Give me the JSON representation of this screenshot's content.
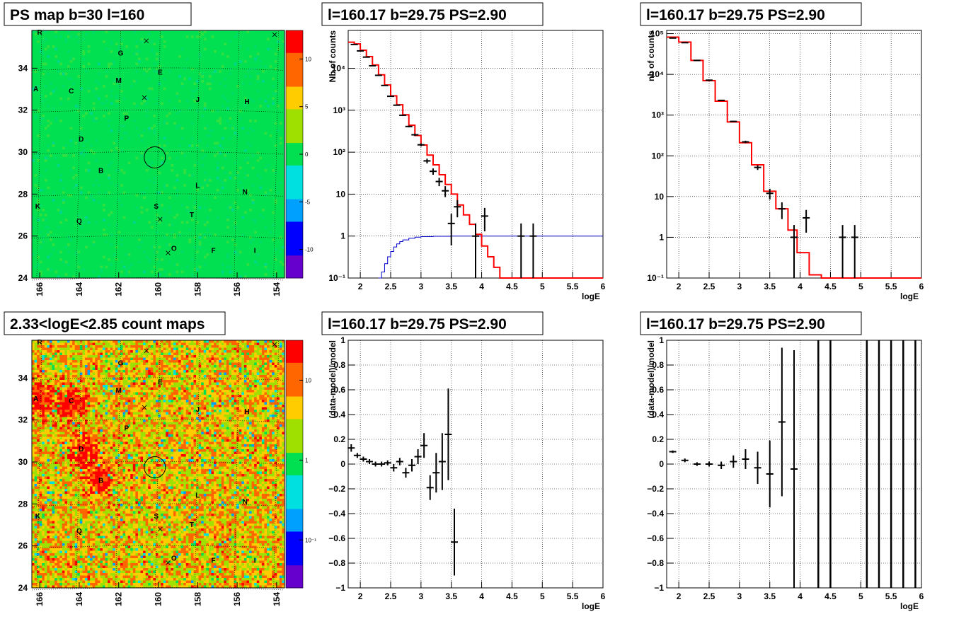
{
  "chart_data": [
    {
      "type": "heatmap",
      "title": "PS map b=30 l=160",
      "x_ticks": [
        "166",
        "164",
        "162",
        "160",
        "158",
        "156",
        "154"
      ],
      "y_ticks": [
        "24",
        "26",
        "28",
        "30",
        "32",
        "34"
      ],
      "xlim": [
        166.4,
        153.6
      ],
      "ylim": [
        24,
        35.8
      ],
      "colorbar_ticks": [
        "10",
        "5",
        "0",
        "-5",
        "-10"
      ],
      "colorbar_range": [
        -13,
        13
      ],
      "background": "#00e050",
      "colorscale": [
        "#6600cc",
        "#0000ff",
        "#00a0ff",
        "#00e0e0",
        "#00e050",
        "#a0e000",
        "#ffcc00",
        "#ff6600",
        "#ff0000"
      ],
      "sources": [
        {
          "label": "R",
          "l": 166.0,
          "b": 35.6
        },
        {
          "label": "G",
          "l": 161.9,
          "b": 34.6
        },
        {
          "label": "E",
          "l": 159.9,
          "b": 33.7
        },
        {
          "label": "M",
          "l": 162.0,
          "b": 33.3
        },
        {
          "label": "A",
          "l": 166.2,
          "b": 32.9
        },
        {
          "label": "C",
          "l": 164.4,
          "b": 32.8
        },
        {
          "label": "J",
          "l": 158.0,
          "b": 32.4
        },
        {
          "label": "H",
          "l": 155.5,
          "b": 32.3
        },
        {
          "label": "P",
          "l": 161.6,
          "b": 31.5
        },
        {
          "label": "D",
          "l": 163.9,
          "b": 30.5
        },
        {
          "label": "B",
          "l": 162.9,
          "b": 29.0
        },
        {
          "label": "L",
          "l": 158.0,
          "b": 28.3
        },
        {
          "label": "N",
          "l": 155.6,
          "b": 28.0
        },
        {
          "label": "K",
          "l": 166.1,
          "b": 27.3
        },
        {
          "label": "S",
          "l": 160.1,
          "b": 27.3
        },
        {
          "label": "T",
          "l": 158.3,
          "b": 26.9
        },
        {
          "label": "Q",
          "l": 164.0,
          "b": 26.6
        },
        {
          "label": "O",
          "l": 159.2,
          "b": 25.3
        },
        {
          "label": "F",
          "l": 157.2,
          "b": 25.2
        },
        {
          "label": "I",
          "l": 155.1,
          "b": 25.2
        }
      ],
      "cross_markers": [
        {
          "l": 160.6,
          "b": 35.3
        },
        {
          "l": 160.7,
          "b": 32.6
        },
        {
          "l": 159.9,
          "b": 26.8
        },
        {
          "l": 159.5,
          "b": 25.2
        },
        {
          "l": 154.1,
          "b": 35.6
        }
      ],
      "circle": {
        "l": 160.17,
        "b": 29.75
      }
    },
    {
      "type": "line",
      "title": "l=160.17 b=29.75 PS=2.90",
      "xlabel": "logE",
      "ylabel": "Nb of counts",
      "xlim": [
        1.8,
        6
      ],
      "ylim": [
        0.1,
        80000
      ],
      "log_y": true,
      "x_ticks": [
        "2",
        "2.5",
        "3",
        "3.5",
        "4",
        "4.5",
        "5",
        "5.5",
        "6"
      ],
      "y_ticks": [
        "10⁻¹",
        "1",
        "10",
        "10²",
        "10³",
        "10⁴"
      ],
      "red_model": [
        [
          1.8,
          42000
        ],
        [
          1.9,
          38000
        ],
        [
          2.0,
          27000
        ],
        [
          2.1,
          19000
        ],
        [
          2.2,
          12000
        ],
        [
          2.3,
          7000
        ],
        [
          2.4,
          4000
        ],
        [
          2.5,
          2200
        ],
        [
          2.6,
          1350
        ],
        [
          2.7,
          780
        ],
        [
          2.8,
          440
        ],
        [
          2.9,
          250
        ],
        [
          3.0,
          148
        ],
        [
          3.1,
          85
        ],
        [
          3.2,
          50
        ],
        [
          3.3,
          29
        ],
        [
          3.4,
          17
        ],
        [
          3.5,
          10
        ],
        [
          3.6,
          5.5
        ],
        [
          3.7,
          3.2
        ],
        [
          3.8,
          1.9
        ],
        [
          3.9,
          1.1
        ],
        [
          4.0,
          0.58
        ],
        [
          4.1,
          0.32
        ],
        [
          4.2,
          0.18
        ],
        [
          4.3,
          0.1
        ],
        [
          4.4,
          0.1
        ],
        [
          6.0,
          0.1
        ]
      ],
      "blue_model": [
        [
          2.3,
          0.1
        ],
        [
          2.35,
          0.14
        ],
        [
          2.4,
          0.22
        ],
        [
          2.45,
          0.32
        ],
        [
          2.5,
          0.43
        ],
        [
          2.55,
          0.55
        ],
        [
          2.6,
          0.65
        ],
        [
          2.65,
          0.74
        ],
        [
          2.7,
          0.81
        ],
        [
          2.8,
          0.89
        ],
        [
          2.9,
          0.94
        ],
        [
          3.0,
          0.97
        ],
        [
          3.2,
          0.99
        ],
        [
          3.5,
          1.0
        ],
        [
          6.0,
          1.0
        ]
      ],
      "points": [
        {
          "x": 1.9,
          "y": 37000,
          "err": 200
        },
        {
          "x": 2.0,
          "y": 26000,
          "err": 160
        },
        {
          "x": 2.1,
          "y": 18500,
          "err": 140
        },
        {
          "x": 2.2,
          "y": 11500,
          "err": 110
        },
        {
          "x": 2.3,
          "y": 6800,
          "err": 85
        },
        {
          "x": 2.4,
          "y": 3900,
          "err": 65
        },
        {
          "x": 2.5,
          "y": 2150,
          "err": 47
        },
        {
          "x": 2.6,
          "y": 1320,
          "err": 37
        },
        {
          "x": 2.7,
          "y": 760,
          "err": 28
        },
        {
          "x": 2.8,
          "y": 410,
          "err": 20
        },
        {
          "x": 2.9,
          "y": 260,
          "err": 16
        },
        {
          "x": 3.0,
          "y": 150,
          "err": 12
        },
        {
          "x": 3.1,
          "y": 62,
          "err": 8
        },
        {
          "x": 3.2,
          "y": 35,
          "err": 6
        },
        {
          "x": 3.3,
          "y": 20,
          "err": 4.5
        },
        {
          "x": 3.4,
          "y": 12,
          "err": 3.5
        },
        {
          "x": 3.5,
          "y": 2,
          "err": 1.4
        },
        {
          "x": 3.6,
          "y": 5,
          "err": 2.2
        },
        {
          "x": 3.9,
          "y": 1,
          "err": 1
        },
        {
          "x": 4.05,
          "y": 3,
          "err": 1.7
        },
        {
          "x": 4.65,
          "y": 1,
          "err": 1
        },
        {
          "x": 4.85,
          "y": 1,
          "err": 1
        }
      ]
    },
    {
      "type": "line",
      "title": "l=160.17 b=29.75 PS=2.90",
      "xlabel": "logE",
      "ylabel": "nb of counts",
      "xlim": [
        1.8,
        6
      ],
      "ylim": [
        0.1,
        120000
      ],
      "log_y": true,
      "x_ticks": [
        "2",
        "2.5",
        "3",
        "3.5",
        "4",
        "4.5",
        "5",
        "5.5",
        "6"
      ],
      "y_ticks": [
        "10⁻¹",
        "1",
        "10",
        "10²",
        "10³",
        "10⁴",
        "10⁵"
      ],
      "red_model": [
        [
          1.8,
          82000
        ],
        [
          2.0,
          62000
        ],
        [
          2.2,
          22000
        ],
        [
          2.4,
          7000
        ],
        [
          2.6,
          2200
        ],
        [
          2.8,
          680
        ],
        [
          3.0,
          210
        ],
        [
          3.2,
          60
        ],
        [
          3.4,
          13.5
        ],
        [
          3.6,
          5
        ],
        [
          3.8,
          1.5
        ],
        [
          3.95,
          0.42
        ],
        [
          4.15,
          0.12
        ],
        [
          4.35,
          0.1
        ],
        [
          6.0,
          0.1
        ]
      ],
      "points": [
        {
          "x": 1.9,
          "y": 78000,
          "err": 300
        },
        {
          "x": 2.1,
          "y": 60000,
          "err": 250
        },
        {
          "x": 2.3,
          "y": 22000,
          "err": 150
        },
        {
          "x": 2.5,
          "y": 7200,
          "err": 85
        },
        {
          "x": 2.7,
          "y": 2300,
          "err": 48
        },
        {
          "x": 2.9,
          "y": 700,
          "err": 26
        },
        {
          "x": 3.1,
          "y": 220,
          "err": 15
        },
        {
          "x": 3.3,
          "y": 52,
          "err": 7
        },
        {
          "x": 3.5,
          "y": 12,
          "err": 3.5
        },
        {
          "x": 3.7,
          "y": 5,
          "err": 2.2
        },
        {
          "x": 3.9,
          "y": 1,
          "err": 1
        },
        {
          "x": 4.1,
          "y": 3,
          "err": 1.7
        },
        {
          "x": 4.7,
          "y": 1,
          "err": 1
        },
        {
          "x": 4.9,
          "y": 1,
          "err": 1
        }
      ]
    },
    {
      "type": "heatmap",
      "title": "2.33<logE<2.85 count maps",
      "x_ticks": [
        "166",
        "164",
        "162",
        "160",
        "158",
        "156",
        "154"
      ],
      "y_ticks": [
        "24",
        "26",
        "28",
        "30",
        "32",
        "34"
      ],
      "xlim": [
        166.4,
        153.6
      ],
      "ylim": [
        24,
        35.8
      ],
      "colorbar_ticks": [
        "10",
        "1",
        "10⁻¹"
      ],
      "colorbar_log_range": [
        -1.6,
        1.5
      ],
      "background": "#ff8800",
      "colorscale": [
        "#6600cc",
        "#0000ff",
        "#00a0ff",
        "#00e0e0",
        "#00e050",
        "#a0e000",
        "#ffcc00",
        "#ff6600",
        "#ff0000"
      ],
      "hotspots": [
        {
          "l": 163.0,
          "b": 29.2
        },
        {
          "l": 166.0,
          "b": 33.0
        },
        {
          "l": 164.4,
          "b": 32.8
        },
        {
          "l": 163.7,
          "b": 30.6
        }
      ]
    },
    {
      "type": "scatter",
      "title": "l=160.17 b=29.75 PS=2.90",
      "xlabel": "logE",
      "ylabel": "(data-model)/model",
      "xlim": [
        1.8,
        6
      ],
      "ylim": [
        -1,
        1
      ],
      "x_ticks": [
        "2",
        "2.5",
        "3",
        "3.5",
        "4",
        "4.5",
        "5",
        "5.5",
        "6"
      ],
      "y_ticks": [
        "−1",
        "−0.8",
        "−0.6",
        "−0.4",
        "−0.2",
        "0",
        "0.2",
        "0.4",
        "0.6",
        "0.8",
        "1"
      ],
      "points": [
        {
          "x": 1.85,
          "y": 0.13,
          "err": 0.03
        },
        {
          "x": 1.95,
          "y": 0.07,
          "err": 0.02
        },
        {
          "x": 2.05,
          "y": 0.04,
          "err": 0.02
        },
        {
          "x": 2.15,
          "y": 0.02,
          "err": 0.02
        },
        {
          "x": 2.25,
          "y": 0.0,
          "err": 0.02
        },
        {
          "x": 2.35,
          "y": 0.0,
          "err": 0.02
        },
        {
          "x": 2.45,
          "y": 0.01,
          "err": 0.02
        },
        {
          "x": 2.55,
          "y": -0.03,
          "err": 0.03
        },
        {
          "x": 2.65,
          "y": 0.02,
          "err": 0.03
        },
        {
          "x": 2.75,
          "y": -0.07,
          "err": 0.04
        },
        {
          "x": 2.85,
          "y": -0.01,
          "err": 0.05
        },
        {
          "x": 2.95,
          "y": 0.06,
          "err": 0.06
        },
        {
          "x": 3.05,
          "y": 0.15,
          "err": 0.1
        },
        {
          "x": 3.15,
          "y": -0.19,
          "err": 0.1
        },
        {
          "x": 3.25,
          "y": -0.07,
          "err": 0.16
        },
        {
          "x": 3.35,
          "y": 0.02,
          "err": 0.23
        },
        {
          "x": 3.45,
          "y": 0.24,
          "err": 0.37
        },
        {
          "x": 3.55,
          "y": -0.63,
          "err": 0.27
        }
      ]
    },
    {
      "type": "scatter",
      "title": "l=160.17 b=29.75 PS=2.90",
      "xlabel": "logE",
      "ylabel": "(data-model)/model",
      "xlim": [
        1.8,
        6
      ],
      "ylim": [
        -1,
        1
      ],
      "x_ticks": [
        "2",
        "2.5",
        "3",
        "3.5",
        "4",
        "4.5",
        "5",
        "5.5",
        "6"
      ],
      "y_ticks": [
        "−1",
        "−0.8",
        "−0.6",
        "−0.4",
        "−0.2",
        "0",
        "0.2",
        "0.4",
        "0.6",
        "0.8",
        "1"
      ],
      "points": [
        {
          "x": 1.9,
          "y": 0.1,
          "err": 0.01
        },
        {
          "x": 2.1,
          "y": 0.03,
          "err": 0.015
        },
        {
          "x": 2.3,
          "y": 0.0,
          "err": 0.015
        },
        {
          "x": 2.5,
          "y": 0.0,
          "err": 0.02
        },
        {
          "x": 2.7,
          "y": -0.01,
          "err": 0.03
        },
        {
          "x": 2.9,
          "y": 0.02,
          "err": 0.05
        },
        {
          "x": 3.1,
          "y": 0.04,
          "err": 0.08
        },
        {
          "x": 3.3,
          "y": -0.03,
          "err": 0.13
        },
        {
          "x": 3.5,
          "y": -0.08,
          "err": 0.27
        },
        {
          "x": 3.7,
          "y": 0.34,
          "err": 0.6
        },
        {
          "x": 3.9,
          "y": -0.04,
          "err": 0.96
        }
      ],
      "vertical_bars_x": [
        4.3,
        4.5,
        5.1,
        5.3,
        5.5,
        5.7,
        5.9
      ]
    }
  ]
}
